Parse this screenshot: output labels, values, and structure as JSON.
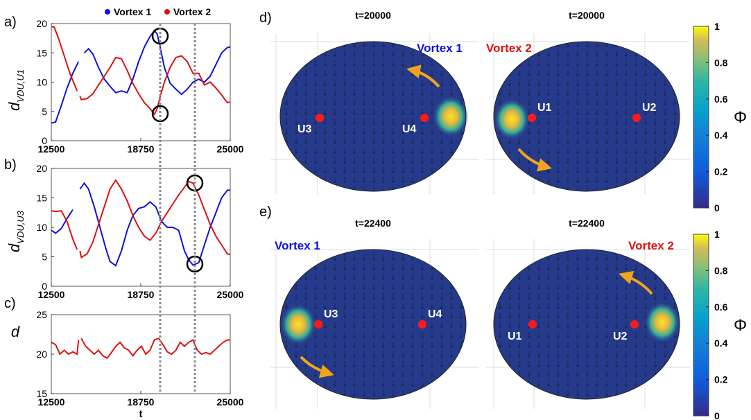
{
  "legend": {
    "items": [
      {
        "label": "Vortex 1",
        "color": "#1010e0"
      },
      {
        "label": "Vortex 2",
        "color": "#e01010"
      }
    ]
  },
  "colors": {
    "vortex1": "#1010e0",
    "vortex2": "#e01010",
    "marker": "#ff1a1a",
    "arrow": "#f2a51a"
  },
  "colorbar": {
    "label": "Φ",
    "ticks": [
      "1",
      "0.8",
      "0.6",
      "0.4",
      "0.2",
      "0"
    ]
  },
  "panels": {
    "a": {
      "tag": "a)",
      "ylabel": "d",
      "ysub": "VDU,U1"
    },
    "b": {
      "tag": "b)",
      "ylabel": "d",
      "ysub": "VDU,U3"
    },
    "c": {
      "tag": "c)",
      "ylabel": "d",
      "xlabel": "t"
    },
    "d": {
      "tag": "d)",
      "left_title": "t=20000",
      "right_title": "t=20000",
      "left_vortex": "Vortex 1",
      "right_vortex": "Vortex 2",
      "left_units": [
        "U3",
        "U4"
      ],
      "right_units": [
        "U1",
        "U2"
      ]
    },
    "e": {
      "tag": "e)",
      "left_title": "t=22400",
      "right_title": "t=22400",
      "left_vortex": "Vortex 1",
      "right_vortex": "Vortex 2",
      "left_units": [
        "U3",
        "U4"
      ],
      "right_units": [
        "U1",
        "U2"
      ]
    }
  },
  "chart_data": [
    {
      "type": "line",
      "panel": "a",
      "ylabel": "d_VDU,U1",
      "xlim": [
        12500,
        25000
      ],
      "ylim": [
        0,
        20
      ],
      "xticks": [
        "12500",
        "18750",
        "25000"
      ],
      "yticks": [
        "0",
        "5",
        "10",
        "15",
        "20"
      ],
      "grid": false,
      "legend_position": "top",
      "series": [
        {
          "name": "Vortex 1",
          "color": "#1010e0",
          "x": [
            12500,
            12800,
            13200,
            13600,
            14000,
            14400,
            14800,
            15100,
            15400,
            15800,
            16200,
            16600,
            17000,
            17400,
            17800,
            18200,
            18600,
            19000,
            19400,
            19700,
            19900,
            20100,
            20400,
            20800,
            21200,
            21600,
            22000,
            22400,
            22800,
            23200,
            23600,
            24000,
            24400,
            24800,
            25000
          ],
          "y": [
            3.0,
            3.2,
            6.0,
            9.0,
            11.5,
            13.5,
            15.0,
            15.7,
            14.8,
            12.5,
            10.5,
            9.3,
            8.2,
            8.5,
            8.2,
            10.5,
            13.5,
            16.0,
            17.8,
            18.8,
            18.2,
            16.0,
            12.5,
            9.8,
            8.8,
            7.9,
            8.8,
            10.0,
            10.5,
            10.0,
            11.0,
            13.0,
            15.0,
            15.9,
            16.0
          ]
        },
        {
          "name": "Vortex 2",
          "color": "#e01010",
          "x": [
            12500,
            12700,
            13000,
            13400,
            13800,
            14300,
            14500,
            14600,
            15000,
            15400,
            15800,
            16200,
            16600,
            17000,
            17400,
            17800,
            18200,
            18600,
            19000,
            19400,
            19700,
            19900,
            20100,
            20400,
            20800,
            21200,
            21600,
            22000,
            22400,
            22800,
            23200,
            23600,
            24000,
            24400,
            24800,
            25000
          ],
          "y": [
            19.5,
            19.4,
            17.5,
            14.5,
            11.5,
            8.5,
            7.6,
            7.0,
            7.2,
            8.0,
            9.5,
            11.0,
            12.5,
            14.2,
            14.0,
            12.0,
            9.8,
            8.0,
            6.5,
            5.5,
            4.5,
            5.5,
            7.5,
            10.0,
            12.5,
            14.2,
            14.5,
            13.5,
            11.5,
            11.5,
            9.5,
            10.0,
            9.0,
            7.8,
            6.5,
            6.6
          ]
        }
      ]
    },
    {
      "type": "line",
      "panel": "b",
      "ylabel": "d_VDU,U3",
      "xlim": [
        12500,
        25000
      ],
      "ylim": [
        0,
        20
      ],
      "xticks": [
        "12500",
        "18750",
        "25000"
      ],
      "yticks": [
        "0",
        "5",
        "10",
        "15",
        "20"
      ],
      "grid": false,
      "series": [
        {
          "name": "Vortex 1",
          "color": "#1010e0",
          "x": [
            12500,
            12800,
            13200,
            13600,
            14000,
            14500,
            14800,
            15100,
            15500,
            15900,
            16300,
            16600,
            17000,
            17400,
            17800,
            18200,
            18600,
            19000,
            19400,
            19800,
            20200,
            20600,
            21000,
            21400,
            21800,
            22100,
            22400,
            22800,
            23200,
            23600,
            24000,
            24400,
            24800,
            25000
          ],
          "y": [
            9.5,
            9.0,
            9.8,
            11.5,
            13.0,
            16.5,
            17.5,
            16.5,
            13.5,
            10.0,
            6.5,
            4.2,
            3.5,
            6.0,
            9.5,
            12.0,
            13.2,
            13.5,
            14.3,
            13.5,
            11.0,
            10.0,
            10.0,
            9.5,
            6.0,
            4.5,
            3.6,
            4.0,
            7.0,
            10.0,
            12.5,
            15.0,
            16.3,
            16.3
          ]
        },
        {
          "name": "Vortex 2",
          "color": "#e01010",
          "x": [
            12500,
            12800,
            13200,
            13600,
            14000,
            14300,
            14500,
            14600,
            15000,
            15400,
            15800,
            16200,
            16600,
            17000,
            17400,
            17800,
            18200,
            18600,
            19000,
            19400,
            19800,
            20200,
            20600,
            21000,
            21400,
            21800,
            22100,
            22400,
            22800,
            23200,
            23600,
            24000,
            24400,
            24800,
            25000
          ],
          "y": [
            12.8,
            12.7,
            12.8,
            11.0,
            8.0,
            6.2,
            6.0,
            4.9,
            5.5,
            7.5,
            10.5,
            13.5,
            16.5,
            18.0,
            16.5,
            14.5,
            12.0,
            10.0,
            8.5,
            7.8,
            9.0,
            11.0,
            12.5,
            14.0,
            15.5,
            16.8,
            17.8,
            17.5,
            15.5,
            13.0,
            10.5,
            8.5,
            7.0,
            5.5,
            5.4
          ]
        }
      ]
    },
    {
      "type": "line",
      "panel": "c",
      "ylabel": "d",
      "xlabel": "t",
      "xlim": [
        12500,
        25000
      ],
      "ylim": [
        15,
        25
      ],
      "xticks": [
        "12500",
        "18750",
        "25000"
      ],
      "yticks": [
        "15",
        "20",
        "25"
      ],
      "grid": false,
      "series": [
        {
          "color": "#e01010",
          "x": [
            12500,
            12800,
            13100,
            13400,
            13700,
            14000,
            14300,
            14400,
            14600,
            14900,
            15200,
            15500,
            15800,
            16100,
            16400,
            16700,
            17000,
            17300,
            17600,
            17900,
            18200,
            18500,
            18800,
            19100,
            19400,
            19700,
            20000,
            20300,
            20600,
            20900,
            21200,
            21500,
            21800,
            22100,
            22400,
            22700,
            23000,
            23300,
            23600,
            23900,
            24200,
            24500,
            24800,
            25000
          ],
          "y": [
            21.5,
            21.2,
            20.0,
            20.5,
            20.0,
            20.3,
            20.0,
            21.8,
            22.0,
            21.0,
            20.5,
            20.0,
            20.5,
            19.8,
            19.5,
            20.2,
            21.0,
            21.5,
            20.8,
            20.5,
            19.8,
            20.5,
            21.0,
            20.0,
            20.5,
            21.8,
            22.0,
            21.2,
            20.3,
            20.0,
            20.5,
            21.5,
            21.0,
            21.5,
            21.8,
            20.5,
            20.0,
            20.2,
            20.0,
            20.5,
            21.0,
            21.5,
            21.8,
            21.8
          ]
        }
      ]
    }
  ]
}
